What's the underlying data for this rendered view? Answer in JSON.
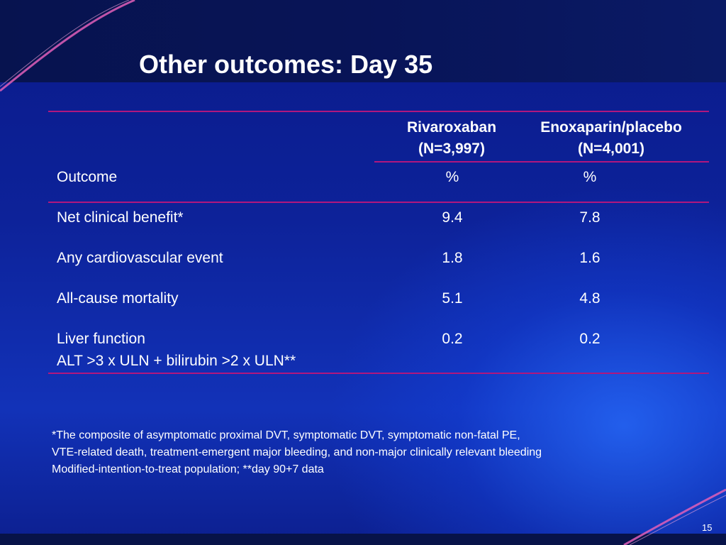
{
  "slide": {
    "title": "Other outcomes: Day 35",
    "page_number": "15"
  },
  "table": {
    "columns": [
      {
        "name": "Rivaroxaban",
        "n": "(N=3,997)"
      },
      {
        "name": "Enoxaparin/placebo",
        "n": "(N=4,001)"
      }
    ],
    "unit_row": {
      "label": "Outcome",
      "values": [
        "%",
        "%"
      ]
    },
    "rows": [
      {
        "label": "Net clinical benefit*",
        "values": [
          "9.4",
          "7.8"
        ]
      },
      {
        "label": "Any cardiovascular event",
        "values": [
          "1.8",
          "1.6"
        ]
      },
      {
        "label": "All-cause mortality",
        "values": [
          "5.1",
          "4.8"
        ]
      },
      {
        "label": "Liver function",
        "sublabel": "ALT >3 x ULN + bilirubin >2 x ULN**",
        "values": [
          "0.2",
          "0.2"
        ]
      }
    ]
  },
  "footnotes": [
    "*The composite of asymptomatic proximal DVT, symptomatic DVT, symptomatic non-fatal PE,",
    "VTE-related death, treatment-emergent major bleeding, and non-major clinically relevant bleeding",
    "Modified-intention-to-treat population; **day 90+7 data"
  ],
  "colors": {
    "background": "#0d2299",
    "rule": "#b0177e",
    "text": "#ffffff"
  }
}
